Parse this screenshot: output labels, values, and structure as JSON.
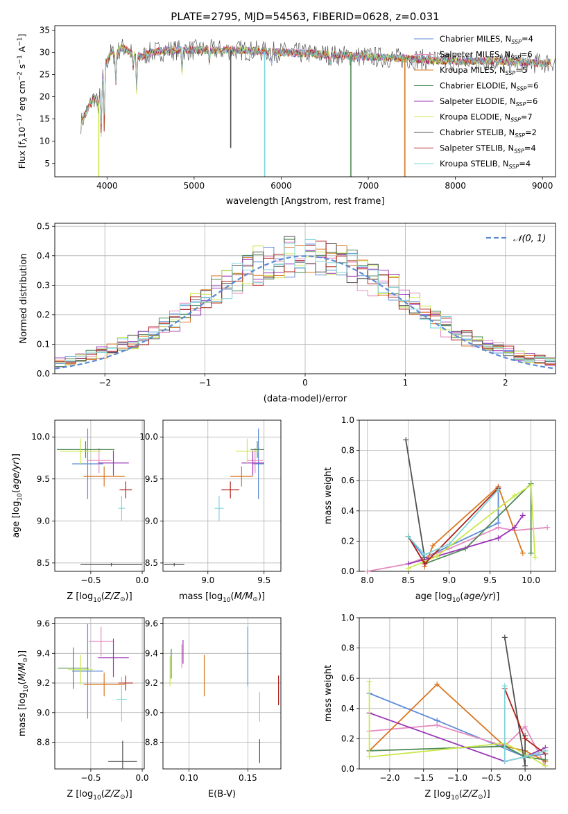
{
  "title": "PLATE=2795, MJD=54563, FIBERID=0628, z=0.031",
  "colors": {
    "Chabrier MILES": "#5b8ad6",
    "Salpeter MILES": "#e58ac0",
    "Kroupa MILES": "#d9761f",
    "Chabrier ELODIE": "#4f8a55",
    "Salpeter ELODIE": "#9a34b5",
    "Kroupa ELODIE": "#c9e84a",
    "Chabrier STELIB": "#505050",
    "Salpeter STELIB": "#b0201a",
    "Kroupa STELIB": "#7fd4da"
  },
  "chart_data": [
    {
      "id": "spectrum",
      "type": "line",
      "title": "PLATE=2795, MJD=54563, FIBERID=0628, z=0.031",
      "xlabel": "wavelength [Angstrom, rest frame]",
      "ylabel": "Flux [fλ10⁻¹⁷ erg cm⁻² s⁻¹ A⁻¹]",
      "xlim": [
        3400,
        9150
      ],
      "ylim": [
        2,
        36
      ],
      "xticks": [
        4000,
        5000,
        6000,
        7000,
        8000,
        9000
      ],
      "yticks": [
        5,
        10,
        15,
        20,
        25,
        30,
        35
      ],
      "legend_position": "top-right",
      "legend": [
        "Chabrier MILES, N_SSP=4",
        "Salpeter MILES, N_SSP=6",
        "Kroupa MILES, N_SSP=5",
        "Chabrier ELODIE, N_SSP=6",
        "Salpeter ELODIE, N_SSP=6",
        "Kroupa ELODIE, N_SSP=7",
        "Chabrier STELIB, N_SSP=2",
        "Salpeter STELIB, N_SSP=4",
        "Kroupa STELIB, N_SSP=4"
      ],
      "legend_text": {
        "base": [
          "Chabrier MILES, N",
          "Salpeter MILES, N",
          "Kroupa MILES, N",
          "Chabrier ELODIE, N",
          "Salpeter ELODIE, N",
          "Kroupa ELODIE, N",
          "Chabrier STELIB, N",
          "Salpeter STELIB, N",
          "Kroupa STELIB, N"
        ],
        "sub": "SSP",
        "n": [
          "=4",
          "=6",
          "=5",
          "=6",
          "=6",
          "=7",
          "=2",
          "=4",
          "=4"
        ]
      },
      "series_order": [
        "Chabrier MILES",
        "Salpeter MILES",
        "Kroupa MILES",
        "Chabrier ELODIE",
        "Salpeter ELODIE",
        "Kroupa ELODIE",
        "Chabrier STELIB",
        "Salpeter STELIB",
        "Kroupa STELIB"
      ],
      "continuum": {
        "x": [
          3700,
          3750,
          3800,
          3850,
          3900,
          3950,
          4000,
          4050,
          4100,
          4150,
          4200,
          4300,
          4400,
          4500,
          4700,
          5000,
          5500,
          6000,
          6500,
          7000,
          7500,
          8000,
          8500,
          9000,
          9150
        ],
        "y": [
          14,
          16,
          18,
          20,
          18,
          24,
          28,
          30,
          29,
          31,
          31,
          29.5,
          29,
          30,
          30.5,
          30.5,
          30.5,
          30,
          29.5,
          29,
          28.5,
          28,
          28,
          27.5,
          28
        ]
      },
      "absorption_dips": [
        {
          "x": 3933,
          "y": 10
        },
        {
          "x": 3968,
          "y": 11
        },
        {
          "x": 4101,
          "y": 22
        },
        {
          "x": 4300,
          "y": 26
        },
        {
          "x": 4340,
          "y": 20
        },
        {
          "x": 4861,
          "y": 25
        },
        {
          "x": 5175,
          "y": 27
        },
        {
          "x": 5890,
          "y": 27
        },
        {
          "x": 6563,
          "y": 27
        }
      ],
      "spikes": [
        {
          "x": 3905,
          "y": 2,
          "series": "Kroupa ELODIE"
        },
        {
          "x": 5810,
          "y": 2,
          "series": "Kroupa STELIB"
        },
        {
          "x": 6800,
          "y": 2,
          "series": "Chabrier ELODIE"
        },
        {
          "x": 7420,
          "y": 2,
          "series": "Kroupa MILES"
        },
        {
          "x": 5420,
          "y": 8.5,
          "series": "Chabrier STELIB"
        }
      ]
    },
    {
      "id": "residuals",
      "type": "step",
      "xlabel": "(data-model)/error",
      "ylabel": "Normed distribution",
      "xlim": [
        -2.5,
        2.5
      ],
      "ylim": [
        0,
        0.51
      ],
      "xticks": [
        -2,
        -1,
        0,
        1,
        2
      ],
      "xtick_labels": [
        "−2",
        "−1",
        "0",
        "1",
        "2"
      ],
      "yticks": [
        0.0,
        0.1,
        0.2,
        0.3,
        0.4,
        0.5
      ],
      "ytick_labels": [
        "0.0",
        "0.1",
        "0.2",
        "0.3",
        "0.4",
        "0.5"
      ],
      "grid": true,
      "legend_position": "top-right",
      "reference_curve": {
        "name": "𝒩(0, 1)",
        "mean": 0,
        "sigma": 1,
        "color": "#5b8ad6"
      },
      "bins": 48
    },
    {
      "id": "age_vs_Z",
      "type": "errorbar",
      "xlabel": "Z [log10(Z/Z⊙)]",
      "ylabel": "age  [log10(age/yr)]",
      "xlim": [
        -0.85,
        0.02
      ],
      "ylim": [
        8.4,
        10.2
      ],
      "xticks": [
        -0.5,
        0.0
      ],
      "xtick_labels": [
        "−0.5",
        "0.0"
      ],
      "yticks": [
        8.5,
        9.0,
        9.5,
        10.0
      ],
      "ytick_labels": [
        "8.5",
        "9.0",
        "9.5",
        "10.0"
      ],
      "grid": true,
      "points": [
        {
          "series": "Chabrier MILES",
          "x": -0.53,
          "xerr": 0.15,
          "y": 9.68,
          "yerr": 0.42
        },
        {
          "series": "Salpeter MILES",
          "x": -0.42,
          "xerr": 0.12,
          "y": 9.72,
          "yerr": 0.15
        },
        {
          "series": "Kroupa MILES",
          "x": -0.37,
          "xerr": 0.2,
          "y": 9.53,
          "yerr": 0.12
        },
        {
          "series": "Chabrier ELODIE",
          "x": -0.55,
          "xerr": 0.28,
          "y": 9.85,
          "yerr": 0.1
        },
        {
          "series": "Salpeter ELODIE",
          "x": -0.28,
          "xerr": 0.15,
          "y": 9.69,
          "yerr": 0.15
        },
        {
          "series": "Kroupa ELODIE",
          "x": -0.6,
          "xerr": 0.2,
          "y": 9.83,
          "yerr": 0.15
        },
        {
          "series": "Chabrier STELIB",
          "x": -0.3,
          "xerr": 0.3,
          "y": 8.48,
          "yerr": 0.02
        },
        {
          "series": "Salpeter STELIB",
          "x": -0.16,
          "xerr": 0.06,
          "y": 9.37,
          "yerr": 0.1
        },
        {
          "series": "Kroupa STELIB",
          "x": -0.2,
          "xerr": 0.03,
          "y": 9.15,
          "yerr": 0.15
        }
      ]
    },
    {
      "id": "age_vs_mass",
      "type": "errorbar",
      "xlabel": "mass [log10(M/M⊙)]",
      "ylabel": "",
      "xlim": [
        8.6,
        9.65
      ],
      "ylim": [
        8.4,
        10.2
      ],
      "xticks": [
        9.0,
        9.5
      ],
      "xtick_labels": [
        "9.0",
        "9.5"
      ],
      "yticks": [
        8.5,
        9.0,
        9.5,
        10.0
      ],
      "ytick_labels": [
        "8.5",
        "9.0",
        "9.5",
        "10.0"
      ],
      "grid": true,
      "points": [
        {
          "series": "Chabrier MILES",
          "x": 9.45,
          "xerr": 0.05,
          "y": 9.68,
          "yerr": 0.42
        },
        {
          "series": "Salpeter MILES",
          "x": 9.42,
          "xerr": 0.07,
          "y": 9.72,
          "yerr": 0.15
        },
        {
          "series": "Kroupa MILES",
          "x": 9.3,
          "xerr": 0.1,
          "y": 9.53,
          "yerr": 0.12
        },
        {
          "series": "Chabrier ELODIE",
          "x": 9.44,
          "xerr": 0.06,
          "y": 9.85,
          "yerr": 0.1
        },
        {
          "series": "Salpeter ELODIE",
          "x": 9.4,
          "xerr": 0.1,
          "y": 9.69,
          "yerr": 0.15
        },
        {
          "series": "Kroupa ELODIE",
          "x": 9.35,
          "xerr": 0.1,
          "y": 9.83,
          "yerr": 0.15
        },
        {
          "series": "Chabrier STELIB",
          "x": 8.7,
          "xerr": 0.09,
          "y": 8.48,
          "yerr": 0.02
        },
        {
          "series": "Salpeter STELIB",
          "x": 9.2,
          "xerr": 0.08,
          "y": 9.37,
          "yerr": 0.1
        },
        {
          "series": "Kroupa STELIB",
          "x": 9.1,
          "xerr": 0.04,
          "y": 9.15,
          "yerr": 0.15
        }
      ]
    },
    {
      "id": "weights_vs_age",
      "type": "line",
      "xlabel": "age  [log10(age/yr)]",
      "ylabel": "mass weight",
      "xlim": [
        7.9,
        10.3
      ],
      "ylim": [
        0,
        1
      ],
      "xticks": [
        8.0,
        8.5,
        9.0,
        9.5,
        10.0
      ],
      "xtick_labels": [
        "8.0",
        "8.5",
        "9.0",
        "9.5",
        "10.0"
      ],
      "yticks": [
        0.0,
        0.2,
        0.4,
        0.6,
        0.8,
        1.0
      ],
      "ytick_labels": [
        "0.0",
        "0.2",
        "0.4",
        "0.6",
        "0.8",
        "1.0"
      ],
      "grid": true,
      "series": [
        {
          "name": "Chabrier MILES",
          "x": [
            8.5,
            8.7,
            9.6,
            9.6
          ],
          "y": [
            0.23,
            0.09,
            0.32,
            0.55
          ]
        },
        {
          "name": "Salpeter MILES",
          "x": [
            8.0,
            8.5,
            9.0,
            9.6,
            9.8,
            10.2
          ],
          "y": [
            0.0,
            0.05,
            0.15,
            0.29,
            0.27,
            0.29
          ]
        },
        {
          "name": "Kroupa MILES",
          "x": [
            8.7,
            8.8,
            9.6,
            9.9
          ],
          "y": [
            0.03,
            0.17,
            0.56,
            0.12
          ]
        },
        {
          "name": "Chabrier ELODIE",
          "x": [
            8.5,
            8.7,
            9.2,
            10.0,
            10.0
          ],
          "y": [
            0.23,
            0.05,
            0.15,
            0.58,
            0.12
          ]
        },
        {
          "name": "Salpeter ELODIE",
          "x": [
            8.5,
            8.85,
            9.6,
            9.8,
            9.9
          ],
          "y": [
            0.05,
            0.1,
            0.22,
            0.29,
            0.37
          ]
        },
        {
          "name": "Kroupa ELODIE",
          "x": [
            8.5,
            8.85,
            9.8,
            10.0,
            10.05
          ],
          "y": [
            0.02,
            0.1,
            0.5,
            0.57,
            0.09
          ]
        },
        {
          "name": "Chabrier STELIB",
          "x": [
            8.47,
            8.7
          ],
          "y": [
            0.87,
            0.09
          ]
        },
        {
          "name": "Salpeter STELIB",
          "x": [
            8.5,
            8.7,
            9.6
          ],
          "y": [
            0.23,
            0.05,
            0.55
          ]
        },
        {
          "name": "Kroupa STELIB",
          "x": [
            8.5,
            8.7,
            9.0,
            9.6
          ],
          "y": [
            0.23,
            0.11,
            0.18,
            0.54
          ]
        }
      ]
    },
    {
      "id": "mass_vs_Z",
      "type": "errorbar",
      "xlabel": "Z [log10(Z/Z⊙)]",
      "ylabel": "mass [log10(M/M⊙)]",
      "xlim": [
        -0.85,
        0.02
      ],
      "ylim": [
        8.62,
        9.64
      ],
      "xticks": [
        -0.5,
        0.0
      ],
      "xtick_labels": [
        "−0.5",
        "0.0"
      ],
      "yticks": [
        8.8,
        9.0,
        9.2,
        9.4,
        9.6
      ],
      "ytick_labels": [
        "8.8",
        "9.0",
        "9.2",
        "9.4",
        "9.6"
      ],
      "grid": true,
      "points": [
        {
          "series": "Chabrier MILES",
          "x": -0.53,
          "xerr": 0.15,
          "y": 9.28,
          "yerr": 0.32
        },
        {
          "series": "Salpeter MILES",
          "x": -0.4,
          "xerr": 0.12,
          "y": 9.48,
          "yerr": 0.1
        },
        {
          "series": "Kroupa MILES",
          "x": -0.37,
          "xerr": 0.2,
          "y": 9.19,
          "yerr": 0.08
        },
        {
          "series": "Chabrier ELODIE",
          "x": -0.67,
          "xerr": 0.15,
          "y": 9.3,
          "yerr": 0.14
        },
        {
          "series": "Salpeter ELODIE",
          "x": -0.28,
          "xerr": 0.15,
          "y": 9.37,
          "yerr": 0.13
        },
        {
          "series": "Kroupa ELODIE",
          "x": -0.6,
          "xerr": 0.12,
          "y": 9.29,
          "yerr": 0.1
        },
        {
          "series": "Chabrier STELIB",
          "x": -0.19,
          "xerr": 0.14,
          "y": 8.67,
          "yerr": 0.14
        },
        {
          "series": "Salpeter STELIB",
          "x": -0.16,
          "xerr": 0.07,
          "y": 9.2,
          "yerr": 0.05
        },
        {
          "series": "Kroupa STELIB",
          "x": -0.2,
          "xerr": 0.05,
          "y": 9.09,
          "yerr": 0.15
        }
      ]
    },
    {
      "id": "mass_vs_ebv",
      "type": "errorbar",
      "xlabel": "E(B-V)",
      "ylabel": "",
      "xlim": [
        0.078,
        0.178
      ],
      "ylim": [
        8.62,
        9.64
      ],
      "xticks": [
        0.1,
        0.15
      ],
      "xtick_labels": [
        "0.10",
        "0.15"
      ],
      "yticks": [
        8.8,
        9.0,
        9.2,
        9.4,
        9.6
      ],
      "ytick_labels": [
        "8.8",
        "9.0",
        "9.2",
        "9.4",
        "9.6"
      ],
      "grid": true,
      "points": [
        {
          "series": "Chabrier MILES",
          "x": 0.15,
          "xerr": 0,
          "y": 9.38,
          "yerr": 0.2
        },
        {
          "series": "Salpeter MILES",
          "x": 0.094,
          "xerr": 0,
          "y": 9.38,
          "yerr": 0.08
        },
        {
          "series": "Kroupa MILES",
          "x": 0.113,
          "xerr": 0,
          "y": 9.25,
          "yerr": 0.14
        },
        {
          "series": "Chabrier ELODIE",
          "x": 0.085,
          "xerr": 0,
          "y": 9.33,
          "yerr": 0.1
        },
        {
          "series": "Salpeter ELODIE",
          "x": 0.095,
          "xerr": 0,
          "y": 9.41,
          "yerr": 0.08
        },
        {
          "series": "Kroupa ELODIE",
          "x": 0.084,
          "xerr": 0,
          "y": 9.28,
          "yerr": 0.1
        },
        {
          "series": "Chabrier STELIB",
          "x": 0.16,
          "xerr": 0,
          "y": 8.74,
          "yerr": 0.08
        },
        {
          "series": "Salpeter STELIB",
          "x": 0.176,
          "xerr": 0,
          "y": 9.15,
          "yerr": 0.1
        },
        {
          "series": "Kroupa STELIB",
          "x": 0.16,
          "xerr": 0,
          "y": 9.04,
          "yerr": 0.1
        }
      ]
    },
    {
      "id": "weights_vs_Z",
      "type": "line",
      "xlabel": "Z [log10(Z/Z⊙)]",
      "ylabel": "mass weight",
      "xlim": [
        -2.45,
        0.45
      ],
      "ylim": [
        0,
        1
      ],
      "xticks": [
        -2.0,
        -1.5,
        -1.0,
        -0.5,
        0.0
      ],
      "xtick_labels": [
        "−2.0",
        "−1.5",
        "−1.0",
        "−0.5",
        "0.0"
      ],
      "yticks": [
        0.0,
        0.2,
        0.4,
        0.6,
        0.8,
        1.0
      ],
      "ytick_labels": [
        "0.0",
        "0.2",
        "0.4",
        "0.6",
        "0.8",
        "1.0"
      ],
      "grid": true,
      "series": [
        {
          "name": "Chabrier MILES",
          "x": [
            -2.3,
            -1.3,
            0.0,
            0.3
          ],
          "y": [
            0.5,
            0.32,
            0.08,
            0.1
          ]
        },
        {
          "name": "Salpeter MILES",
          "x": [
            -2.3,
            -1.3,
            -0.3,
            0.0,
            0.3
          ],
          "y": [
            0.25,
            0.29,
            0.15,
            0.28,
            0.02
          ]
        },
        {
          "name": "Kroupa MILES",
          "x": [
            -2.3,
            -1.3,
            -0.3,
            0.0,
            0.3
          ],
          "y": [
            0.12,
            0.56,
            0.15,
            0.12,
            0.05
          ]
        },
        {
          "name": "Chabrier ELODIE",
          "x": [
            -2.3,
            -0.3,
            0.0,
            0.3
          ],
          "y": [
            0.12,
            0.15,
            0.08,
            0.06
          ]
        },
        {
          "name": "Salpeter ELODIE",
          "x": [
            -2.3,
            -0.3,
            0.0,
            0.3
          ],
          "y": [
            0.37,
            0.05,
            0.08,
            0.14
          ]
        },
        {
          "name": "Kroupa ELODIE",
          "x": [
            -2.3,
            -2.3,
            -0.3,
            0.0,
            0.3
          ],
          "y": [
            0.58,
            0.08,
            0.17,
            0.1,
            0.02
          ]
        },
        {
          "name": "Chabrier STELIB",
          "x": [
            -0.3,
            0.0,
            0.0
          ],
          "y": [
            0.87,
            0.02,
            0.22
          ]
        },
        {
          "name": "Salpeter STELIB",
          "x": [
            -0.3,
            0.0,
            0.3
          ],
          "y": [
            0.53,
            0.2,
            0.1
          ]
        },
        {
          "name": "Kroupa STELIB",
          "x": [
            -0.3,
            -0.3,
            0.0,
            0.3
          ],
          "y": [
            0.55,
            0.05,
            0.08,
            0.12
          ]
        }
      ]
    }
  ]
}
